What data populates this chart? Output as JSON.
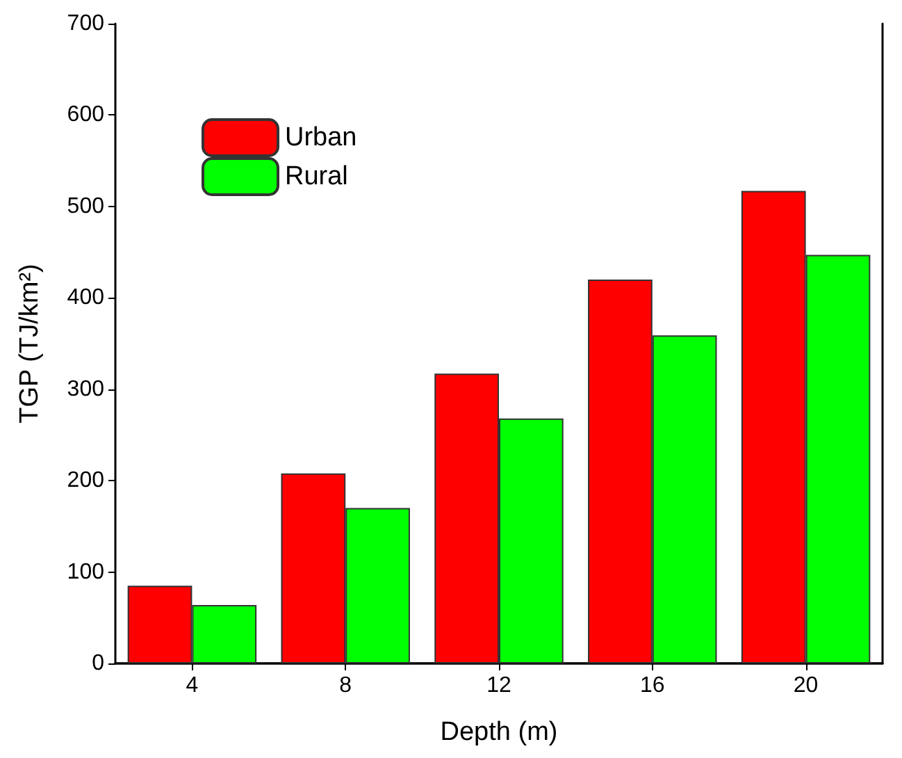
{
  "chart_data": {
    "type": "bar",
    "xlabel": "Depth (m)",
    "ylabel": "TGP (TJ/km²)",
    "categories": [
      "4",
      "8",
      "12",
      "16",
      "20"
    ],
    "series": [
      {
        "name": "Urban",
        "color": "#ff0000",
        "values": [
          85,
          208,
          317,
          420,
          517
        ]
      },
      {
        "name": "Rural",
        "color": "#00ff00",
        "values": [
          64,
          170,
          268,
          359,
          447
        ]
      }
    ],
    "ylim": [
      0,
      700
    ],
    "yticks": [
      0,
      100,
      200,
      300,
      400,
      500,
      600,
      700
    ],
    "grid": false,
    "legend": "top left"
  }
}
